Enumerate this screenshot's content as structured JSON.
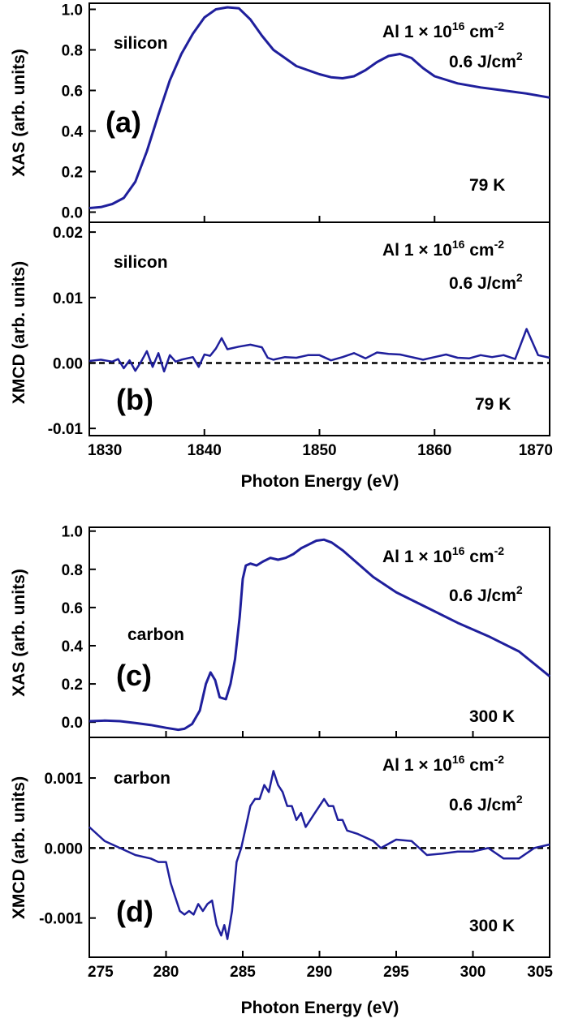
{
  "colors": {
    "series": "#1f1f9c",
    "axis": "#000000",
    "reference": "#000000"
  },
  "chart_data": [
    {
      "id": "a",
      "type": "line",
      "panel_label": "(a)",
      "xlabel": "",
      "ylabel": "XAS (arb. units)",
      "xlim": [
        1830,
        1870
      ],
      "ylim": [
        -0.05,
        1.03
      ],
      "yticks": [
        0.0,
        0.2,
        0.4,
        0.6,
        0.8,
        1.0
      ],
      "ytick_labels": [
        "0.0",
        "0.2",
        "0.4",
        "0.6",
        "0.8",
        "1.0"
      ],
      "xticks": [
        1830,
        1840,
        1850,
        1860,
        1870
      ],
      "xtick_labels": [
        "",
        "",
        "",
        "",
        ""
      ],
      "element_label": "silicon",
      "dose_label": "Al 1 × 10",
      "dose_exponent": "16",
      "dose_unit": " cm",
      "dose_unit_exponent": "-2",
      "fluence_label": "0.6 J/cm",
      "fluence_exponent": "2",
      "temperature_label": "79 K",
      "reference_line": null,
      "x": [
        1830,
        1831,
        1832,
        1833,
        1834,
        1835,
        1836,
        1837,
        1838,
        1839,
        1840,
        1841,
        1842,
        1843,
        1844,
        1845,
        1846,
        1847,
        1848,
        1849,
        1850,
        1851,
        1852,
        1853,
        1854,
        1855,
        1856,
        1857,
        1858,
        1859,
        1860,
        1862,
        1864,
        1866,
        1868,
        1870
      ],
      "y": [
        0.02,
        0.025,
        0.04,
        0.07,
        0.15,
        0.3,
        0.48,
        0.65,
        0.78,
        0.88,
        0.96,
        1.0,
        1.01,
        1.005,
        0.95,
        0.87,
        0.8,
        0.76,
        0.72,
        0.7,
        0.68,
        0.665,
        0.66,
        0.67,
        0.7,
        0.74,
        0.77,
        0.78,
        0.76,
        0.71,
        0.67,
        0.635,
        0.615,
        0.6,
        0.585,
        0.565
      ]
    },
    {
      "id": "b",
      "type": "line",
      "panel_label": "(b)",
      "xlabel": "Photon Energy (eV)",
      "ylabel": "XMCD (arb. units)",
      "xlim": [
        1830,
        1870
      ],
      "ylim": [
        -0.0111,
        0.0215
      ],
      "yticks": [
        -0.01,
        0.0,
        0.01,
        0.02
      ],
      "ytick_labels": [
        "-0.01",
        "0.00",
        "0.01",
        "0.02"
      ],
      "xticks": [
        1830,
        1840,
        1850,
        1860,
        1870
      ],
      "xtick_labels": [
        "1830",
        "1840",
        "1850",
        "1860",
        "1870"
      ],
      "element_label": "silicon",
      "dose_label": "Al 1 × 10",
      "dose_exponent": "16",
      "dose_unit": " cm",
      "dose_unit_exponent": "-2",
      "fluence_label": "0.6 J/cm",
      "fluence_exponent": "2",
      "temperature_label": "79 K",
      "reference_line": 0,
      "x": [
        1830,
        1831,
        1832,
        1832.5,
        1833,
        1833.5,
        1834,
        1834.5,
        1835,
        1835.5,
        1836,
        1836.5,
        1837,
        1837.5,
        1838,
        1839,
        1839.5,
        1840,
        1840.5,
        1841,
        1841.5,
        1842,
        1843,
        1844,
        1845,
        1845.5,
        1846,
        1847,
        1848,
        1849,
        1850,
        1851,
        1852,
        1853,
        1854,
        1855,
        1856,
        1857,
        1858,
        1859,
        1860,
        1861,
        1862,
        1863,
        1864,
        1865,
        1866,
        1867,
        1868,
        1869,
        1870
      ],
      "y": [
        0.0003,
        0.0005,
        0.0002,
        0.0006,
        -0.0008,
        0.0004,
        -0.0012,
        0.0002,
        0.0018,
        -0.0006,
        0.0015,
        -0.0013,
        0.0012,
        0.0002,
        0.0005,
        0.0009,
        -0.0006,
        0.0013,
        0.0011,
        0.0022,
        0.0038,
        0.0021,
        0.0025,
        0.0028,
        0.0024,
        0.0008,
        0.0005,
        0.0009,
        0.0008,
        0.0012,
        0.0012,
        0.0004,
        0.0009,
        0.0015,
        0.0007,
        0.0016,
        0.0014,
        0.0013,
        0.0009,
        0.0005,
        0.0009,
        0.0013,
        0.0008,
        0.0007,
        0.0012,
        0.0009,
        0.0012,
        0.0006,
        0.0052,
        0.0012,
        0.0008
      ]
    },
    {
      "id": "c",
      "type": "line",
      "panel_label": "(c)",
      "xlabel": "",
      "ylabel": "XAS (arb. units)",
      "xlim": [
        275,
        305
      ],
      "ylim": [
        -0.08,
        1.02
      ],
      "yticks": [
        0.0,
        0.2,
        0.4,
        0.6,
        0.8,
        1.0
      ],
      "ytick_labels": [
        "0.0",
        "0.2",
        "0.4",
        "0.6",
        "0.8",
        "1.0"
      ],
      "xticks": [
        275,
        280,
        285,
        290,
        295,
        300,
        305
      ],
      "xtick_labels": [
        "",
        "",
        "",
        "",
        "",
        "",
        ""
      ],
      "element_label": "carbon",
      "dose_label": "Al 1 × 10",
      "dose_exponent": "16",
      "dose_unit": " cm",
      "dose_unit_exponent": "-2",
      "fluence_label": "0.6 J/cm",
      "fluence_exponent": "2",
      "temperature_label": "300 K",
      "reference_line": null,
      "x": [
        275,
        276,
        277,
        278,
        279,
        280,
        280.8,
        281.2,
        281.7,
        282.2,
        282.6,
        282.9,
        283.2,
        283.5,
        283.9,
        284.2,
        284.5,
        284.8,
        285.0,
        285.2,
        285.5,
        285.9,
        286.3,
        286.8,
        287.3,
        287.8,
        288.3,
        288.8,
        289.3,
        289.8,
        290.3,
        290.8,
        291.5,
        292.5,
        293.5,
        295,
        297,
        299,
        301,
        303,
        305
      ],
      "y": [
        0.005,
        0.008,
        0.005,
        -0.005,
        -0.015,
        -0.03,
        -0.04,
        -0.035,
        -0.01,
        0.06,
        0.2,
        0.26,
        0.22,
        0.13,
        0.12,
        0.2,
        0.33,
        0.55,
        0.75,
        0.82,
        0.83,
        0.82,
        0.84,
        0.86,
        0.85,
        0.86,
        0.88,
        0.91,
        0.93,
        0.95,
        0.955,
        0.94,
        0.9,
        0.83,
        0.76,
        0.68,
        0.6,
        0.52,
        0.45,
        0.37,
        0.24
      ]
    },
    {
      "id": "d",
      "type": "line",
      "panel_label": "(d)",
      "xlabel": "Photon Energy (eV)",
      "ylabel": "XMCD (arb. units)",
      "xlim": [
        275,
        305
      ],
      "ylim": [
        -0.00156,
        0.00158
      ],
      "yticks": [
        -0.001,
        0.0,
        0.001
      ],
      "ytick_labels": [
        "-0.001",
        "0.000",
        "0.001"
      ],
      "xticks": [
        275,
        280,
        285,
        290,
        295,
        300,
        305
      ],
      "xtick_labels": [
        "275",
        "280",
        "285",
        "290",
        "295",
        "300",
        "305"
      ],
      "element_label": "carbon",
      "dose_label": "Al 1 × 10",
      "dose_exponent": "16",
      "dose_unit": " cm",
      "dose_unit_exponent": "-2",
      "fluence_label": "0.6 J/cm",
      "fluence_exponent": "2",
      "temperature_label": "300 K",
      "reference_line": 0,
      "x": [
        275,
        276,
        277,
        278,
        279,
        279.5,
        280,
        280.3,
        280.6,
        280.9,
        281.2,
        281.5,
        281.8,
        282.1,
        282.4,
        282.7,
        283.0,
        283.3,
        283.6,
        283.8,
        284.0,
        284.3,
        284.6,
        284.9,
        285.2,
        285.5,
        285.8,
        286.1,
        286.4,
        286.7,
        287.0,
        287.3,
        287.6,
        287.9,
        288.2,
        288.5,
        288.8,
        289.1,
        289.4,
        289.7,
        290.0,
        290.3,
        290.6,
        290.9,
        291.2,
        291.5,
        291.8,
        292.5,
        293.5,
        294,
        295,
        296,
        297,
        298,
        299,
        300,
        301,
        302,
        303,
        304,
        305
      ],
      "y": [
        0.0003,
        0.0001,
        0.0,
        -0.0001,
        -0.00015,
        -0.0002,
        -0.0002,
        -0.0005,
        -0.0007,
        -0.0009,
        -0.00095,
        -0.0009,
        -0.00095,
        -0.0008,
        -0.0009,
        -0.0008,
        -0.00075,
        -0.0011,
        -0.00125,
        -0.0011,
        -0.0013,
        -0.0009,
        -0.0002,
        0.0,
        0.0003,
        0.0006,
        0.0007,
        0.0007,
        0.0009,
        0.0008,
        0.0011,
        0.0009,
        0.0008,
        0.0006,
        0.0006,
        0.0004,
        0.0005,
        0.0003,
        0.0004,
        0.0005,
        0.0006,
        0.0007,
        0.0006,
        0.0006,
        0.0004,
        0.0004,
        0.00025,
        0.0002,
        0.0001,
        0.0,
        0.00012,
        0.0001,
        -0.0001,
        -8e-05,
        -5e-05,
        -5e-05,
        0.0,
        -0.00015,
        -0.00015,
        0.0,
        5e-05
      ]
    }
  ]
}
